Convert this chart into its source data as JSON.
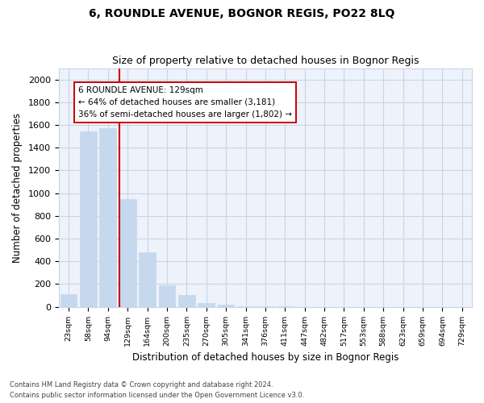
{
  "title": "6, ROUNDLE AVENUE, BOGNOR REGIS, PO22 8LQ",
  "subtitle": "Size of property relative to detached houses in Bognor Regis",
  "xlabel": "Distribution of detached houses by size in Bognor Regis",
  "ylabel": "Number of detached properties",
  "footnote1": "Contains HM Land Registry data © Crown copyright and database right 2024.",
  "footnote2": "Contains public sector information licensed under the Open Government Licence v3.0.",
  "bar_labels": [
    "23sqm",
    "58sqm",
    "94sqm",
    "129sqm",
    "164sqm",
    "200sqm",
    "235sqm",
    "270sqm",
    "305sqm",
    "341sqm",
    "376sqm",
    "411sqm",
    "447sqm",
    "482sqm",
    "517sqm",
    "553sqm",
    "588sqm",
    "623sqm",
    "659sqm",
    "694sqm",
    "729sqm"
  ],
  "bar_values": [
    110,
    1540,
    1570,
    950,
    480,
    190,
    100,
    35,
    15,
    5,
    3,
    2,
    0,
    0,
    0,
    0,
    0,
    0,
    0,
    0,
    0
  ],
  "property_bin_index": 3,
  "annotation_line1": "6 ROUNDLE AVENUE: 129sqm",
  "annotation_line2": "← 64% of detached houses are smaller (3,181)",
  "annotation_line3": "36% of semi-detached houses are larger (1,802) →",
  "bar_color": "#c5d8ee",
  "bar_edge_color": "#c5d8ee",
  "highlight_line_color": "#cc0000",
  "annotation_box_color": "#ffffff",
  "annotation_box_edge": "#cc0000",
  "ylim": [
    0,
    2100
  ],
  "yticks": [
    0,
    200,
    400,
    600,
    800,
    1000,
    1200,
    1400,
    1600,
    1800,
    2000
  ],
  "background_color": "#ffffff",
  "plot_bg_color": "#eef2fb",
  "grid_color": "#c8d4e8",
  "title_fontsize": 10,
  "subtitle_fontsize": 9
}
